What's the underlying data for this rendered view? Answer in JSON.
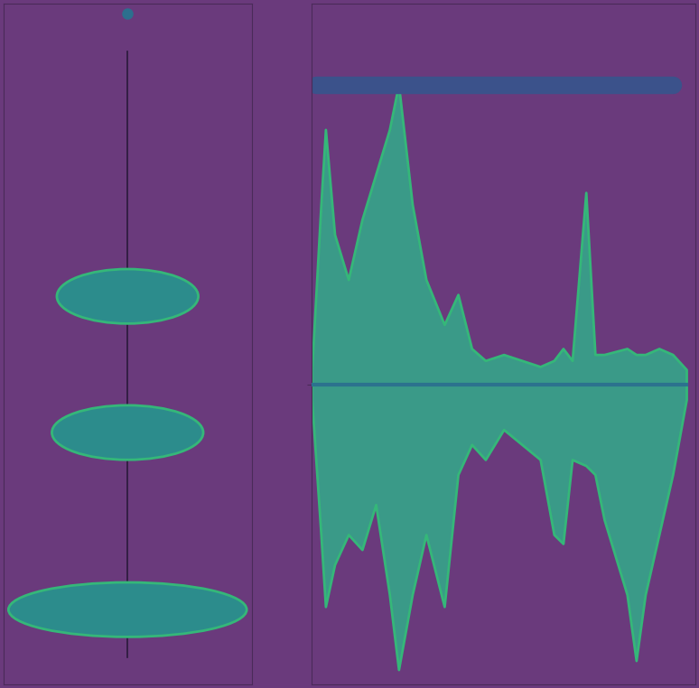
{
  "chart_data": [
    {
      "type": "ellipse",
      "tick_labels": false,
      "color": "#2c8c8c",
      "xlim": [
        -1,
        1
      ],
      "ylim": [
        0,
        100
      ],
      "xticks": [],
      "yticks": [],
      "line_range": [
        4,
        93
      ],
      "points": [
        98.5
      ],
      "values": [
        57,
        37,
        11
      ],
      "half_widths": [
        0.57,
        0.61,
        0.96
      ]
    },
    {
      "type": "area",
      "tick_labels": false,
      "color": "#3a9a88",
      "xlim": [
        0,
        420
      ],
      "ylim": [
        -1,
        1.27
      ],
      "xticks": [],
      "yticks": [
        0
      ],
      "x": [
        0,
        10,
        15,
        25,
        40,
        55,
        70,
        85,
        95,
        110,
        125,
        145,
        160,
        175,
        190,
        210,
        230,
        250,
        265,
        275,
        285,
        300,
        310,
        320,
        345,
        355,
        365,
        380,
        395,
        410
      ],
      "upper": [
        0.05,
        0.6,
        0.85,
        0.5,
        0.35,
        0.55,
        0.7,
        0.85,
        1.0,
        0.6,
        0.35,
        0.2,
        0.3,
        0.12,
        0.08,
        0.1,
        0.08,
        0.06,
        0.08,
        0.12,
        0.08,
        0.64,
        0.1,
        0.1,
        0.12,
        0.1,
        0.1,
        0.12,
        0.1,
        0.05
      ],
      "lower": [
        -0.05,
        -0.5,
        -0.74,
        -0.6,
        -0.5,
        -0.55,
        -0.4,
        -0.7,
        -0.95,
        -0.7,
        -0.5,
        -0.74,
        -0.3,
        -0.2,
        -0.25,
        -0.15,
        -0.2,
        -0.25,
        -0.5,
        -0.53,
        -0.25,
        -0.27,
        -0.3,
        -0.45,
        -0.7,
        -0.92,
        -0.7,
        -0.5,
        -0.3,
        -0.05
      ],
      "top_bar": {
        "x": [
          5,
          395
        ],
        "value": 1.0
      }
    }
  ]
}
